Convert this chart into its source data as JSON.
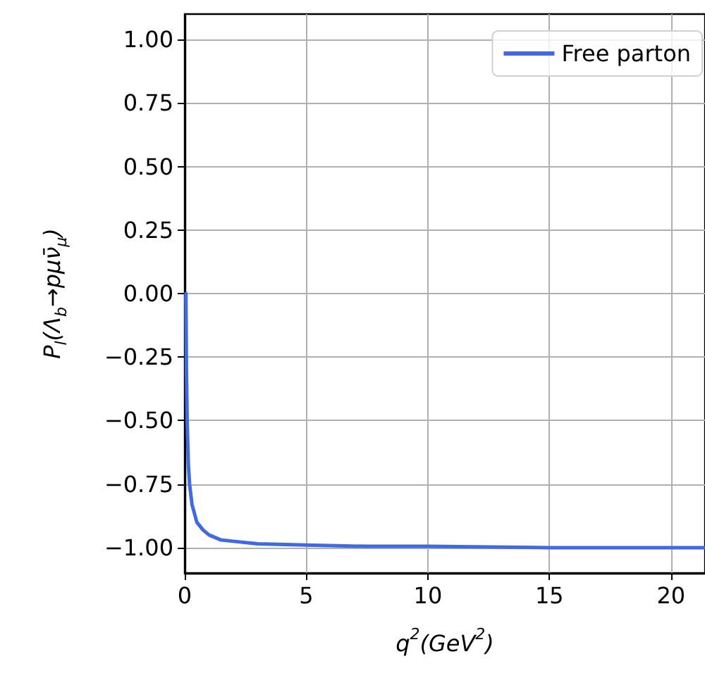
{
  "chart_data": {
    "type": "line",
    "xlabel": "q$^{2}$(GeV$^{2}$)",
    "ylabel": "P$_{l}$(Λ$_{b}$→pμν̄$_{μ}$)",
    "x": [
      0.05,
      0.07,
      0.1,
      0.15,
      0.2,
      0.3,
      0.5,
      0.75,
      1,
      1.5,
      2,
      3,
      5,
      7.5,
      10,
      15,
      20,
      21.4
    ],
    "series": [
      {
        "name": "Free parton",
        "color": "#4169e1",
        "values": [
          0,
          -0.29,
          -0.5,
          -0.67,
          -0.75,
          -0.83,
          -0.9,
          -0.93,
          -0.95,
          -0.97,
          -0.975,
          -0.985,
          -0.99,
          -0.995,
          -0.995,
          -1.0,
          -1.0,
          -1.0
        ]
      }
    ],
    "xlim": [
      0,
      21.4
    ],
    "ylim": [
      -1.1,
      1.1
    ],
    "xticks": [
      0,
      5,
      10,
      15,
      20
    ],
    "yticks": [
      {
        "value": -1,
        "label": "−1.00"
      },
      {
        "value": -0.75,
        "label": "−0.75"
      },
      {
        "value": -0.5,
        "label": "−0.50"
      },
      {
        "value": -0.25,
        "label": "−0.25"
      },
      {
        "value": 0,
        "label": "0.00"
      },
      {
        "value": 0.25,
        "label": "0.25"
      },
      {
        "value": 0.5,
        "label": "0.50"
      },
      {
        "value": 0.75,
        "label": "0.75"
      },
      {
        "value": 1,
        "label": "1.00"
      }
    ],
    "grid": true,
    "legend": "top right",
    "marker": "none",
    "line_style": "solid"
  }
}
